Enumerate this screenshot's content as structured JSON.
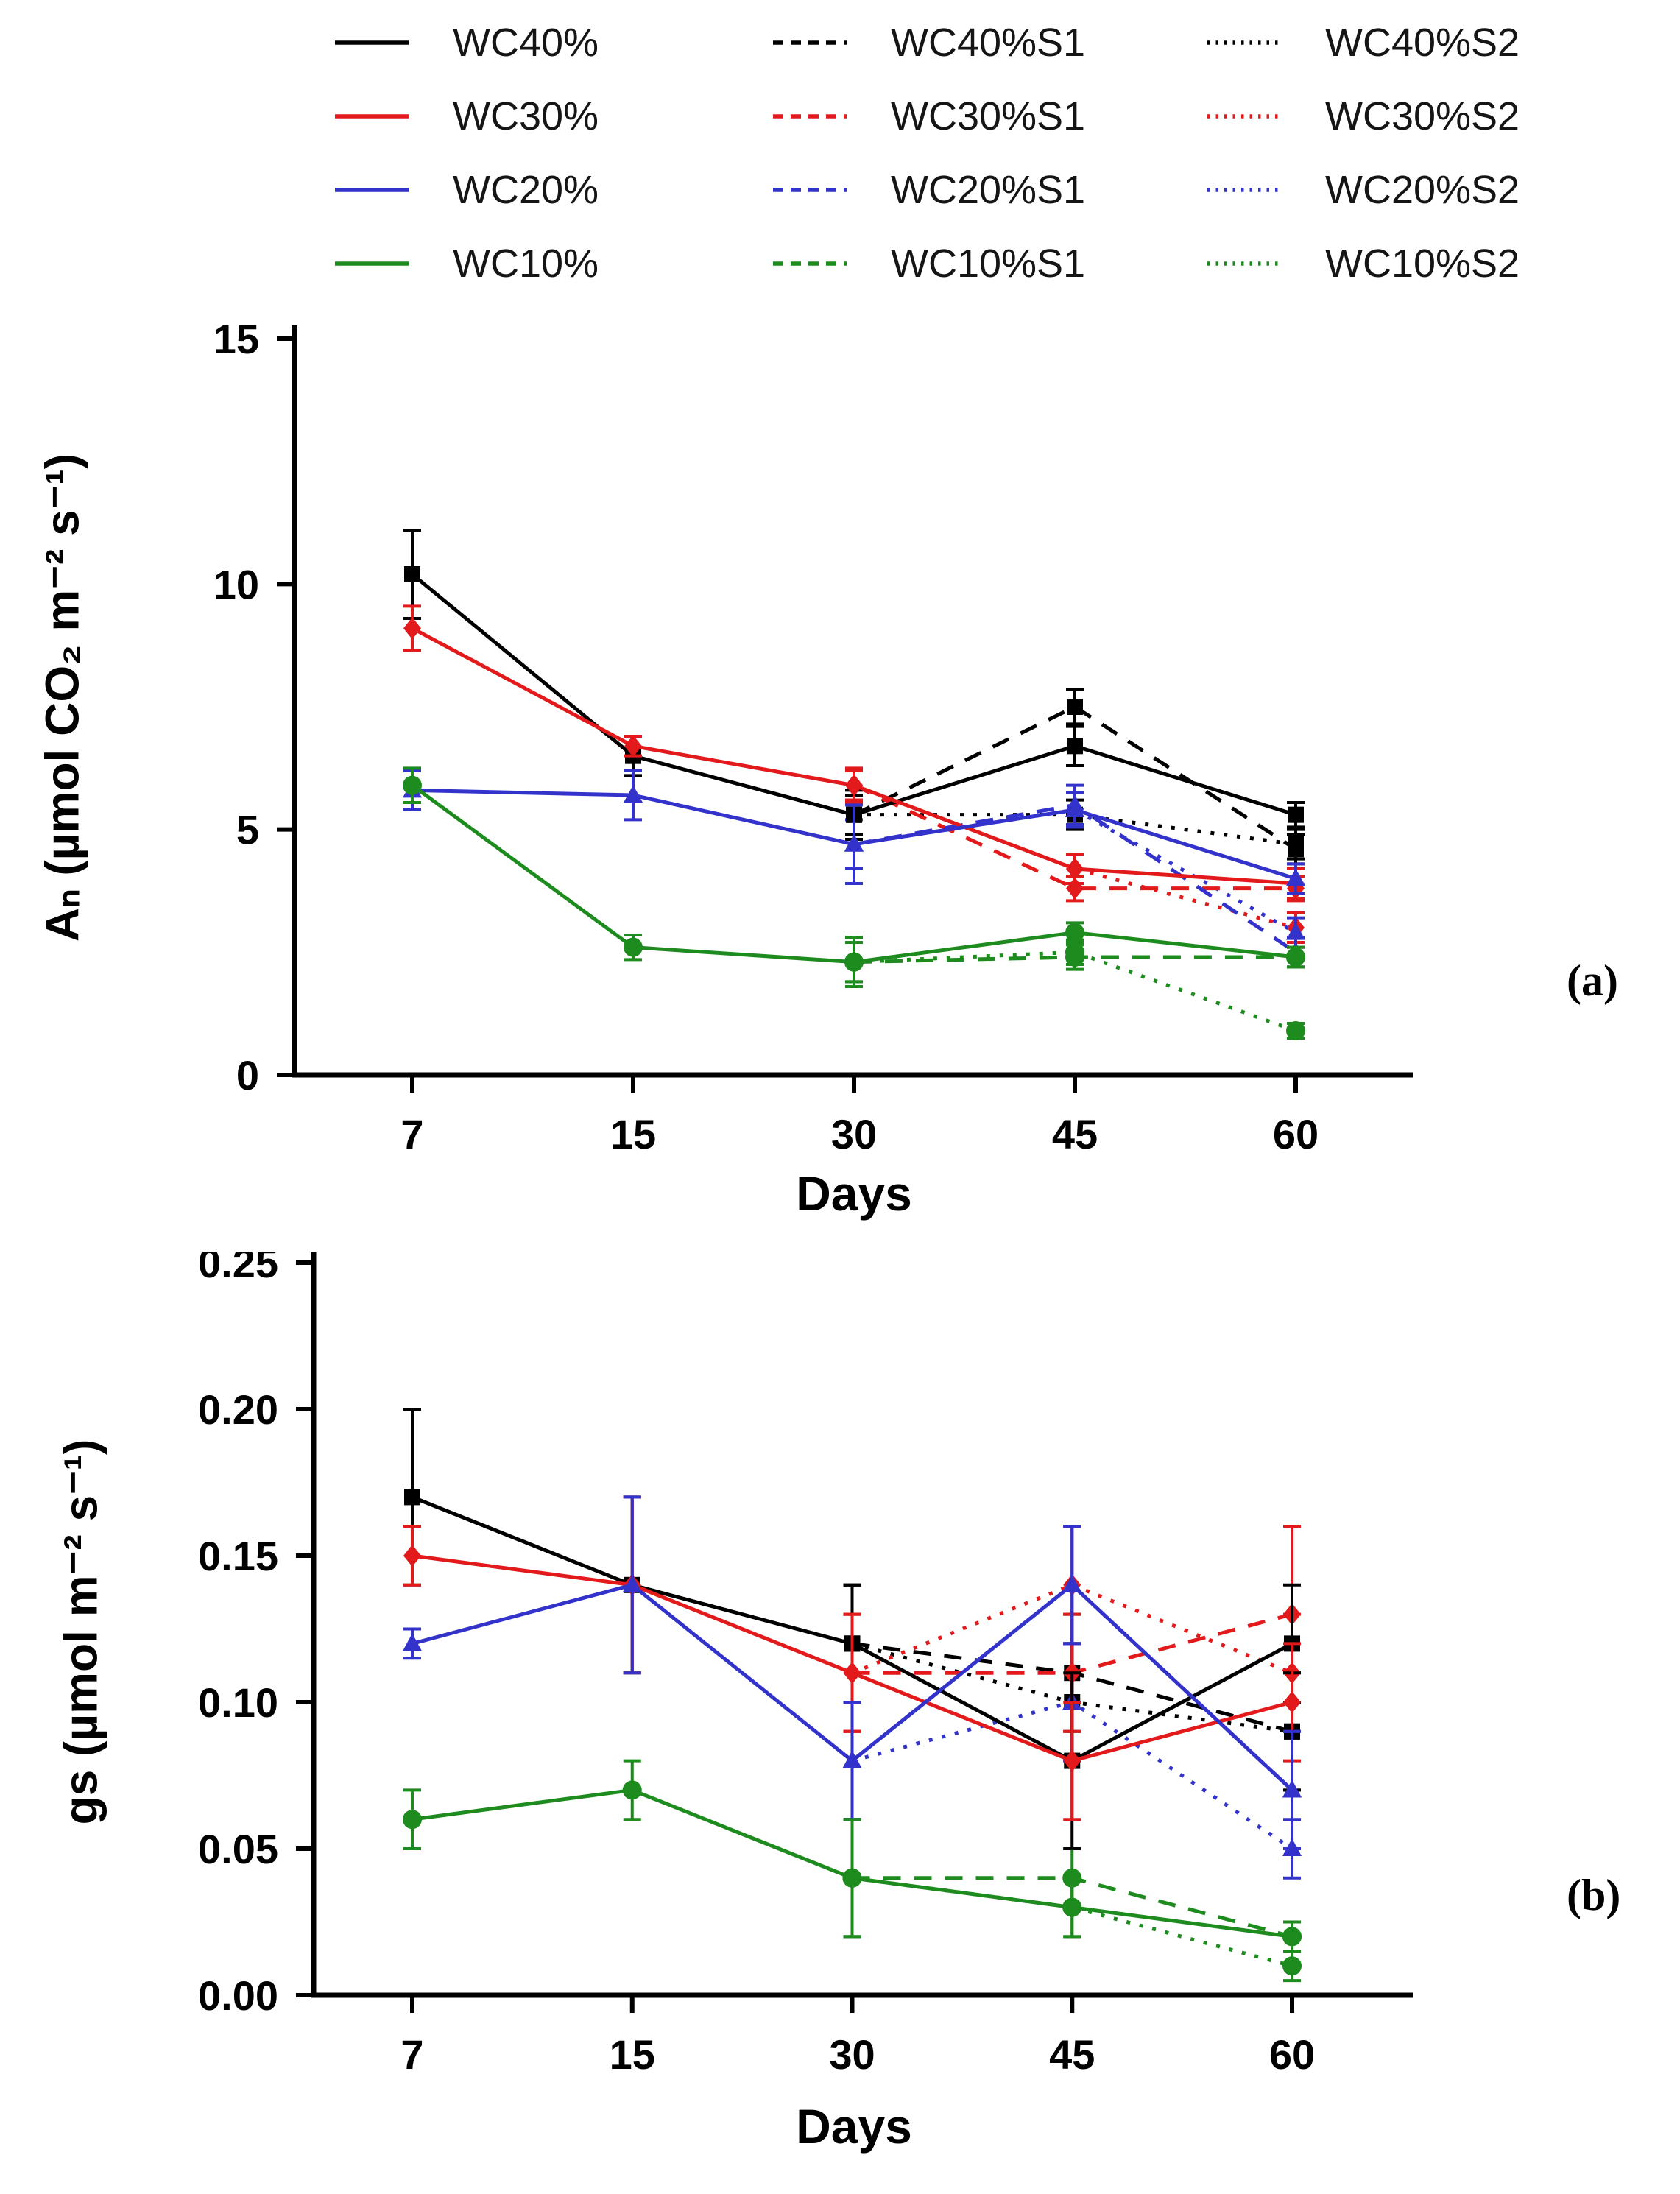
{
  "figure": {
    "panel_a_label": "(a)",
    "panel_b_label": "(b)"
  },
  "colors": {
    "black": "#000000",
    "red": "#e31a1c",
    "blue": "#3333cc",
    "green": "#1e8b1e"
  },
  "legend": {
    "position": "top",
    "items": [
      {
        "label": "WC40%",
        "color": "black",
        "style": "solid"
      },
      {
        "label": "WC40%S1",
        "color": "black",
        "style": "dashed"
      },
      {
        "label": "WC40%S2",
        "color": "black",
        "style": "dotted"
      },
      {
        "label": "WC30%",
        "color": "red",
        "style": "solid"
      },
      {
        "label": "WC30%S1",
        "color": "red",
        "style": "dashed"
      },
      {
        "label": "WC30%S2",
        "color": "red",
        "style": "dotted"
      },
      {
        "label": "WC20%",
        "color": "blue",
        "style": "solid"
      },
      {
        "label": "WC20%S1",
        "color": "blue",
        "style": "dashed"
      },
      {
        "label": "WC20%S2",
        "color": "blue",
        "style": "dotted"
      },
      {
        "label": "WC10%",
        "color": "green",
        "style": "solid"
      },
      {
        "label": "WC10%S1",
        "color": "green",
        "style": "dashed"
      },
      {
        "label": "WC10%S2",
        "color": "green",
        "style": "dotted"
      }
    ]
  },
  "chart_data": [
    {
      "type": "line",
      "panel": "a",
      "xlabel": "Days",
      "ylabel": "Aₙ (µmol CO₂ m⁻² s⁻¹)",
      "x_categories": [
        "7",
        "15",
        "30",
        "45",
        "60"
      ],
      "ylim": [
        0,
        15
      ],
      "yticks": [
        {
          "value": 0,
          "label": "0"
        },
        {
          "value": 5,
          "label": "5"
        },
        {
          "value": 10,
          "label": "10"
        },
        {
          "value": 15,
          "label": "15"
        }
      ],
      "grid": false,
      "legend_position": "top",
      "series": [
        {
          "name": "WC40%",
          "color": "black",
          "style": "solid",
          "marker": "square",
          "values": [
            10.2,
            6.5,
            5.3,
            6.7,
            5.3
          ],
          "errors": [
            0.9,
            0.4,
            0.5,
            0.4,
            0.25
          ]
        },
        {
          "name": "WC30%",
          "color": "red",
          "style": "solid",
          "marker": "diamond",
          "values": [
            9.1,
            6.7,
            5.9,
            4.2,
            3.9
          ],
          "errors": [
            0.45,
            0.2,
            0.35,
            0.3,
            0.3
          ]
        },
        {
          "name": "WC20%",
          "color": "blue",
          "style": "solid",
          "marker": "triangle",
          "values": [
            5.8,
            5.7,
            4.7,
            5.4,
            4.0
          ],
          "errors": [
            0.4,
            0.5,
            0.8,
            0.35,
            0.3
          ]
        },
        {
          "name": "WC10%",
          "color": "green",
          "style": "solid",
          "marker": "circle",
          "values": [
            5.9,
            2.6,
            2.3,
            2.9,
            2.4
          ],
          "errors": [
            0.35,
            0.25,
            0.5,
            0.2,
            0.2
          ]
        },
        {
          "name": "WC40%S1",
          "color": "black",
          "style": "dashed",
          "marker": "square",
          "values": [
            null,
            null,
            5.3,
            7.5,
            4.6
          ],
          "errors": [
            null,
            null,
            0.4,
            0.35,
            0.3
          ]
        },
        {
          "name": "WC30%S1",
          "color": "red",
          "style": "dashed",
          "marker": "diamond",
          "values": [
            null,
            null,
            5.9,
            3.8,
            3.8
          ],
          "errors": [
            null,
            null,
            0.3,
            0.25,
            0.25
          ]
        },
        {
          "name": "WC20%S1",
          "color": "blue",
          "style": "dashed",
          "marker": "triangle",
          "values": [
            null,
            null,
            4.7,
            5.5,
            2.5
          ],
          "errors": [
            null,
            null,
            0.5,
            0.4,
            0.3
          ]
        },
        {
          "name": "WC10%S1",
          "color": "green",
          "style": "dashed",
          "marker": "circle",
          "values": [
            null,
            null,
            2.3,
            2.4,
            2.4
          ],
          "errors": [
            null,
            null,
            0.4,
            0.25,
            0.2
          ]
        },
        {
          "name": "WC40%S2",
          "color": "black",
          "style": "dotted",
          "marker": "square",
          "values": [
            null,
            null,
            5.3,
            5.3,
            4.7
          ],
          "errors": [
            null,
            null,
            0.4,
            0.3,
            0.3
          ]
        },
        {
          "name": "WC30%S2",
          "color": "red",
          "style": "dotted",
          "marker": "diamond",
          "values": [
            null,
            null,
            5.9,
            4.2,
            3.0
          ],
          "errors": [
            null,
            null,
            0.3,
            0.3,
            0.3
          ]
        },
        {
          "name": "WC20%S2",
          "color": "blue",
          "style": "dotted",
          "marker": "triangle",
          "values": [
            null,
            null,
            4.7,
            5.4,
            2.9
          ],
          "errors": [
            null,
            null,
            0.5,
            0.35,
            0.3
          ]
        },
        {
          "name": "WC10%S2",
          "color": "green",
          "style": "dotted",
          "marker": "circle",
          "values": [
            null,
            null,
            2.3,
            2.5,
            0.9
          ],
          "errors": [
            null,
            null,
            0.4,
            0.25,
            0.15
          ]
        }
      ]
    },
    {
      "type": "line",
      "panel": "b",
      "xlabel": "Days",
      "ylabel": "gs (µmol m⁻² s⁻¹)",
      "x_categories": [
        "7",
        "15",
        "30",
        "45",
        "60"
      ],
      "ylim": [
        0,
        0.25
      ],
      "yticks": [
        {
          "value": 0,
          "label": "0.00"
        },
        {
          "value": 0.05,
          "label": "0.05"
        },
        {
          "value": 0.1,
          "label": "0.10"
        },
        {
          "value": 0.15,
          "label": "0.15"
        },
        {
          "value": 0.2,
          "label": "0.20"
        },
        {
          "value": 0.25,
          "label": "0.25"
        }
      ],
      "grid": false,
      "legend_position": "top",
      "series": [
        {
          "name": "WC40%",
          "color": "black",
          "style": "solid",
          "marker": "square",
          "values": [
            0.17,
            0.14,
            0.12,
            0.08,
            0.12
          ],
          "errors": [
            0.03,
            0.03,
            0.02,
            0.03,
            0.02
          ]
        },
        {
          "name": "WC30%",
          "color": "red",
          "style": "solid",
          "marker": "diamond",
          "values": [
            0.15,
            0.14,
            0.11,
            0.08,
            0.1
          ],
          "errors": [
            0.01,
            0.03,
            0.02,
            0.02,
            0.02
          ]
        },
        {
          "name": "WC20%",
          "color": "blue",
          "style": "solid",
          "marker": "triangle",
          "values": [
            0.12,
            0.14,
            0.08,
            0.14,
            0.07
          ],
          "errors": [
            0.005,
            0.03,
            0.02,
            0.02,
            0.02
          ]
        },
        {
          "name": "WC10%",
          "color": "green",
          "style": "solid",
          "marker": "circle",
          "values": [
            0.06,
            0.07,
            0.04,
            0.03,
            0.02
          ],
          "errors": [
            0.01,
            0.01,
            0.02,
            0.01,
            0.005
          ]
        },
        {
          "name": "WC40%S1",
          "color": "black",
          "style": "dashed",
          "marker": "square",
          "values": [
            null,
            null,
            0.12,
            0.11,
            0.09
          ],
          "errors": [
            null,
            null,
            0.02,
            0.02,
            0.02
          ]
        },
        {
          "name": "WC30%S1",
          "color": "red",
          "style": "dashed",
          "marker": "diamond",
          "values": [
            null,
            null,
            0.11,
            0.11,
            0.13
          ],
          "errors": [
            null,
            null,
            0.02,
            0.02,
            0.03
          ]
        },
        {
          "name": "WC20%S1",
          "color": "blue",
          "style": "dashed",
          "marker": "triangle",
          "values": [
            null,
            null,
            0.08,
            0.14,
            0.07
          ],
          "errors": [
            null,
            null,
            0.02,
            0.02,
            0.02
          ]
        },
        {
          "name": "WC10%S1",
          "color": "green",
          "style": "dashed",
          "marker": "circle",
          "values": [
            null,
            null,
            0.04,
            0.04,
            0.02
          ],
          "errors": [
            null,
            null,
            0.02,
            0.01,
            0.005
          ]
        },
        {
          "name": "WC40%S2",
          "color": "black",
          "style": "dotted",
          "marker": "square",
          "values": [
            null,
            null,
            0.12,
            0.1,
            0.09
          ],
          "errors": [
            null,
            null,
            0.02,
            0.02,
            0.02
          ]
        },
        {
          "name": "WC30%S2",
          "color": "red",
          "style": "dotted",
          "marker": "diamond",
          "values": [
            null,
            null,
            0.11,
            0.14,
            0.11
          ],
          "errors": [
            null,
            null,
            0.02,
            0.02,
            0.02
          ]
        },
        {
          "name": "WC20%S2",
          "color": "blue",
          "style": "dotted",
          "marker": "triangle",
          "values": [
            null,
            null,
            0.08,
            0.1,
            0.05
          ],
          "errors": [
            null,
            null,
            0.02,
            0.02,
            0.01
          ]
        },
        {
          "name": "WC10%S2",
          "color": "green",
          "style": "dotted",
          "marker": "circle",
          "values": [
            null,
            null,
            0.04,
            0.03,
            0.01
          ],
          "errors": [
            null,
            null,
            0.02,
            0.01,
            0.005
          ]
        }
      ]
    }
  ]
}
